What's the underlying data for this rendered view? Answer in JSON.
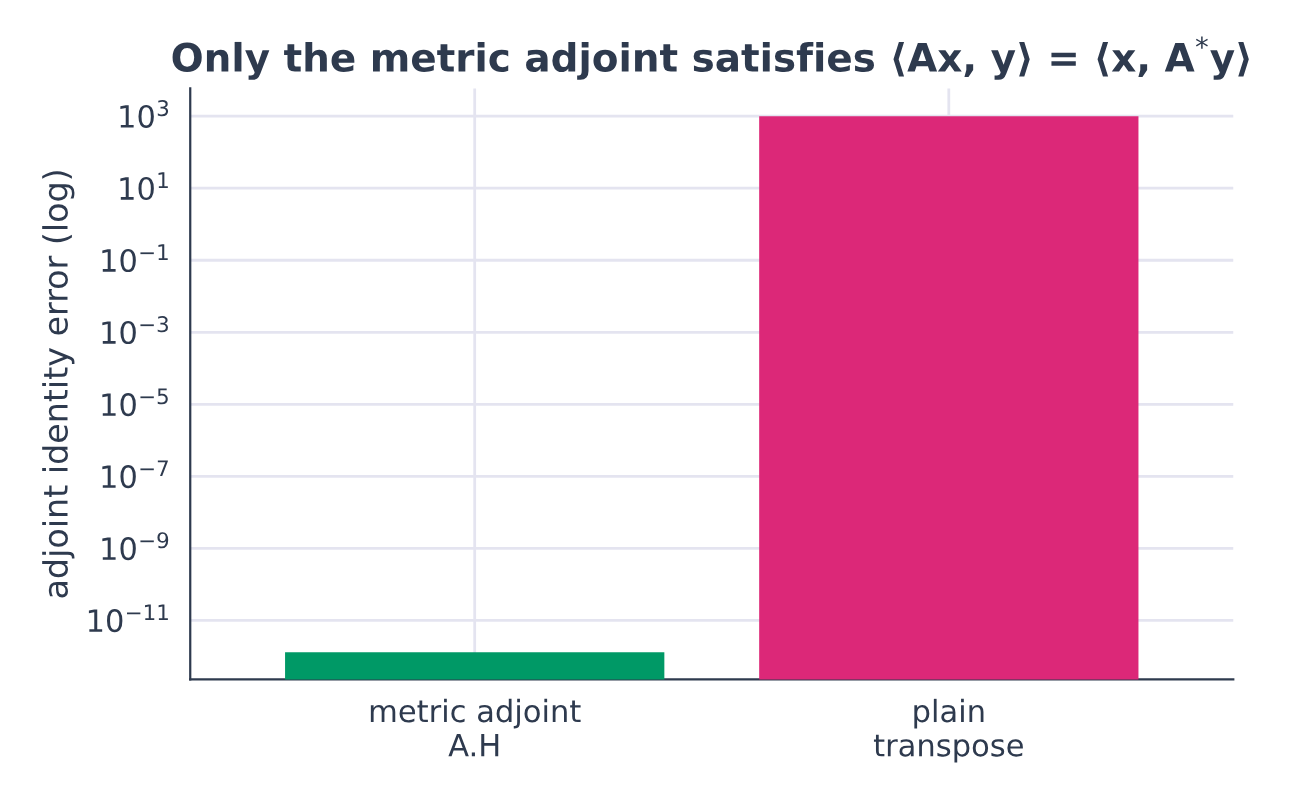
{
  "chart_data": {
    "type": "bar",
    "title": "Only the metric adjoint satisfies ⟨Ax, y⟩ = ⟨x, A$^{*}$y⟩",
    "ylabel": "adjoint identity error (log)",
    "categories": [
      "metric adjoint\nA.H",
      "plain\ntranspose"
    ],
    "values": [
      1.3e-12,
      1000
    ],
    "colors": [
      "#009966",
      "#dc2878"
    ],
    "log": true,
    "ylim": [
      2.3e-13,
      5900
    ],
    "yticks": [
      {
        "value": 1e-11,
        "label": "10$^{−11}$"
      },
      {
        "value": 1e-09,
        "label": "10$^{−9}$"
      },
      {
        "value": 1e-07,
        "label": "10$^{−7}$"
      },
      {
        "value": 1e-05,
        "label": "10$^{−5}$"
      },
      {
        "value": 0.001,
        "label": "10$^{−3}$"
      },
      {
        "value": 0.1,
        "label": "10$^{−1}$"
      },
      {
        "value": 10,
        "label": "10$^{1}$"
      },
      {
        "value": 1000,
        "label": "10$^{3}$"
      }
    ],
    "grid": true
  }
}
